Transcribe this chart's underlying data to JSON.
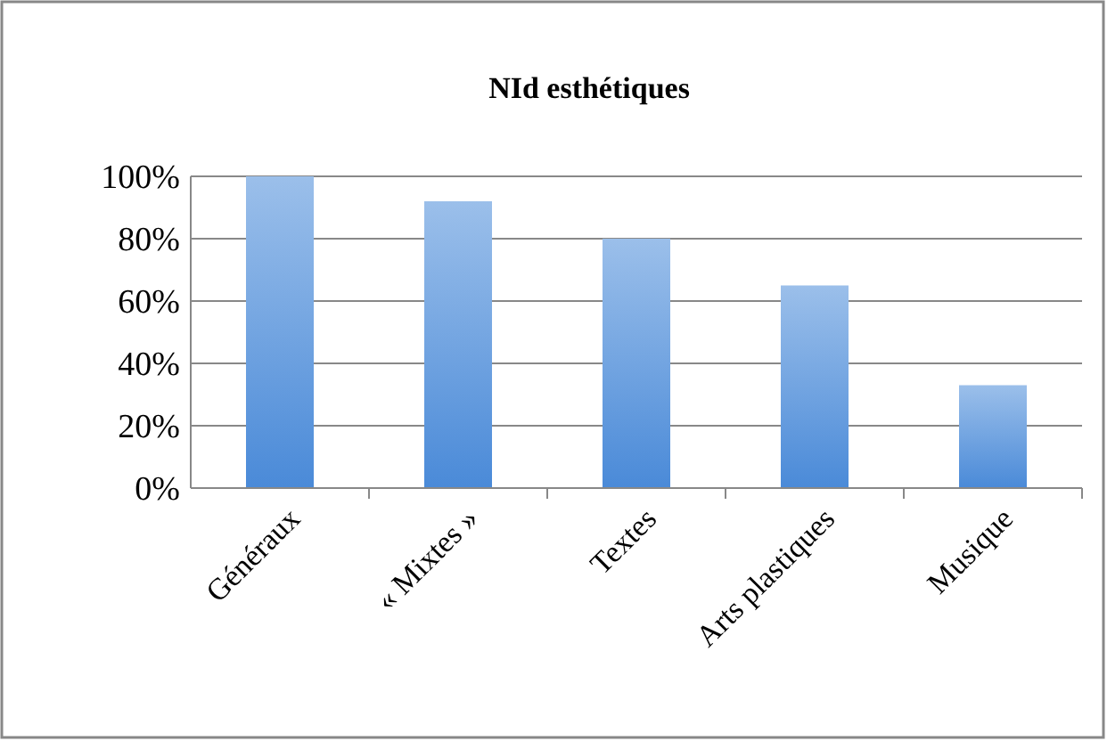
{
  "chart_data": {
    "type": "bar",
    "title": "NId esthétiques",
    "categories": [
      "Généraux",
      "« Mixtes »",
      "Textes",
      "Arts plastiques",
      "Musique"
    ],
    "values": [
      100,
      92,
      80,
      65,
      33
    ],
    "color": "#4a8ad8",
    "ylim": [
      0,
      100
    ],
    "yticks": [
      {
        "value": 0,
        "label": "0%"
      },
      {
        "value": 20,
        "label": "20%"
      },
      {
        "value": 40,
        "label": "40%"
      },
      {
        "value": 60,
        "label": "60%"
      },
      {
        "value": 80,
        "label": "80%"
      },
      {
        "value": 100,
        "label": "100%"
      }
    ],
    "grid": "y"
  }
}
